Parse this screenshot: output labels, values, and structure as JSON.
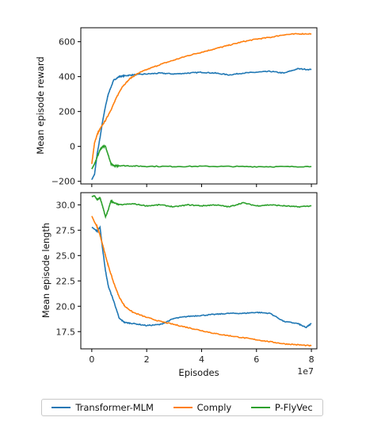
{
  "chart_data": [
    {
      "type": "line",
      "ylabel": "Mean episode reward",
      "xlim": [
        -0.4,
        8.2
      ],
      "ylim": [
        -215,
        680
      ],
      "xticks": [
        "0",
        "2",
        "4",
        "6",
        "8"
      ],
      "yticks": [
        -200,
        0,
        200,
        400,
        600
      ],
      "grid": false,
      "series": [
        {
          "name": "Transformer-MLM",
          "color": "#1f77b4",
          "x": [
            0,
            0.1,
            0.2,
            0.3,
            0.4,
            0.5,
            0.6,
            0.8,
            1.0,
            1.2,
            1.5,
            2,
            2.5,
            3,
            3.5,
            4,
            4.5,
            5,
            5.5,
            6,
            6.5,
            7,
            7.5,
            8
          ],
          "y": [
            -190,
            -160,
            -40,
            50,
            150,
            230,
            300,
            380,
            400,
            405,
            410,
            415,
            420,
            415,
            420,
            425,
            420,
            410,
            420,
            425,
            430,
            420,
            445,
            440
          ]
        },
        {
          "name": "Comply",
          "color": "#ff7f0e",
          "x": [
            0,
            0.1,
            0.2,
            0.3,
            0.5,
            0.7,
            0.9,
            1.1,
            1.4,
            1.7,
            2,
            2.5,
            3,
            3.5,
            4,
            4.5,
            5,
            5.5,
            6,
            6.5,
            7,
            7.5,
            8
          ],
          "y": [
            -100,
            20,
            70,
            100,
            150,
            210,
            280,
            340,
            390,
            420,
            440,
            470,
            495,
            520,
            540,
            560,
            580,
            600,
            615,
            625,
            640,
            645,
            645
          ]
        },
        {
          "name": "P-FlyVec",
          "color": "#2ca02c",
          "x": [
            0,
            0.1,
            0.2,
            0.3,
            0.4,
            0.5,
            0.6,
            0.7,
            0.8,
            0.9,
            1.0,
            1.5,
            2,
            3,
            4,
            5,
            6,
            7,
            8
          ],
          "y": [
            -130,
            -100,
            -60,
            -20,
            0,
            0,
            -50,
            -100,
            -110,
            -112,
            -110,
            -112,
            -114,
            -115,
            -114,
            -115,
            -116,
            -116,
            -115
          ]
        }
      ]
    },
    {
      "type": "line",
      "xlabel": "Episodes",
      "xscale_label": "1e7",
      "ylabel": "Mean episode length",
      "xlim": [
        -0.4,
        8.2
      ],
      "ylim": [
        15.8,
        31.2
      ],
      "xticks": [
        "0",
        "2",
        "4",
        "6",
        "8"
      ],
      "yticks": [
        "17.5",
        "20.0",
        "22.5",
        "25.0",
        "27.5",
        "30.0"
      ],
      "grid": false,
      "series": [
        {
          "name": "Transformer-MLM",
          "color": "#1f77b4",
          "x": [
            0,
            0.1,
            0.2,
            0.3,
            0.4,
            0.5,
            0.6,
            0.8,
            1.0,
            1.2,
            1.5,
            2,
            2.5,
            3,
            3.5,
            4,
            4.5,
            5,
            5.5,
            6,
            6.5,
            7,
            7.5,
            7.8,
            8
          ],
          "y": [
            27.8,
            27.6,
            27.4,
            27.8,
            25.5,
            23.5,
            22.0,
            20.5,
            18.8,
            18.4,
            18.3,
            18.1,
            18.2,
            18.8,
            19.0,
            19.1,
            19.2,
            19.3,
            19.3,
            19.4,
            19.3,
            18.5,
            18.3,
            17.9,
            18.3
          ]
        },
        {
          "name": "Comply",
          "color": "#ff7f0e",
          "x": [
            0,
            0.1,
            0.2,
            0.3,
            0.4,
            0.5,
            0.6,
            0.8,
            1.0,
            1.2,
            1.5,
            2,
            2.5,
            3,
            3.5,
            4,
            4.5,
            5,
            5.5,
            6,
            6.5,
            7,
            7.5,
            8
          ],
          "y": [
            28.9,
            28.3,
            27.8,
            27.0,
            26.0,
            25.0,
            24.0,
            22.3,
            20.9,
            20.0,
            19.4,
            18.9,
            18.5,
            18.2,
            17.9,
            17.6,
            17.3,
            17.1,
            16.9,
            16.7,
            16.5,
            16.3,
            16.2,
            16.1
          ]
        },
        {
          "name": "P-FlyVec",
          "color": "#2ca02c",
          "x": [
            0,
            0.1,
            0.2,
            0.3,
            0.4,
            0.5,
            0.6,
            0.7,
            0.8,
            1.0,
            1.5,
            2,
            2.5,
            3,
            3.5,
            4,
            4.5,
            5,
            5.5,
            6,
            6.5,
            7,
            7.5,
            8
          ],
          "y": [
            30.8,
            30.9,
            30.5,
            30.7,
            29.8,
            28.8,
            29.5,
            30.4,
            30.2,
            30.0,
            30.1,
            29.9,
            30.0,
            29.8,
            30.0,
            29.9,
            30.0,
            29.8,
            30.2,
            29.9,
            30.0,
            29.9,
            29.8,
            29.9
          ]
        }
      ]
    }
  ],
  "legend": {
    "placement": "bottom-center",
    "items": [
      {
        "label": "Transformer-MLM",
        "color": "#1f77b4"
      },
      {
        "label": "Comply",
        "color": "#ff7f0e"
      },
      {
        "label": "P-FlyVec",
        "color": "#2ca02c"
      }
    ]
  }
}
